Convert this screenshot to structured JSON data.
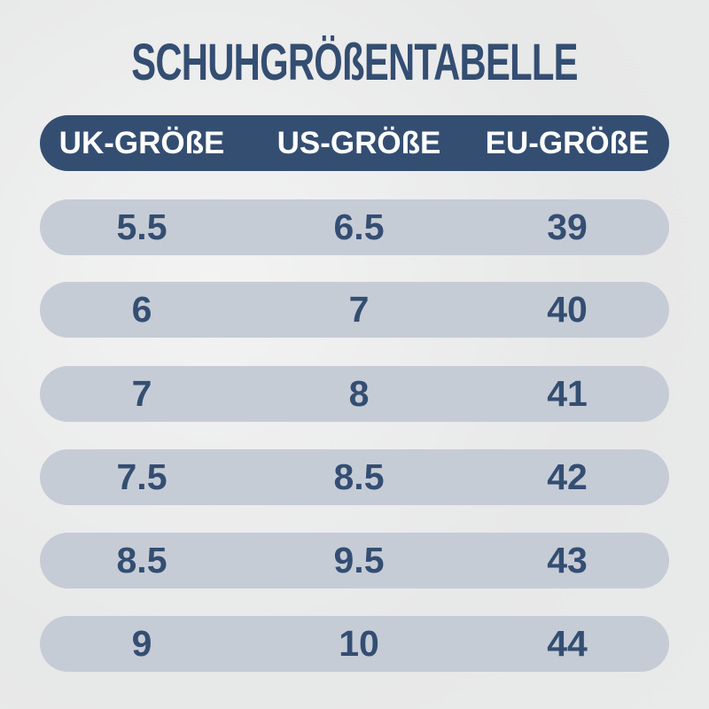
{
  "title": "SCHUHGRÖßENTABELLE",
  "colors": {
    "primary": "#344e72",
    "row_bg": "#c6ccd6",
    "header_text": "#ffffff"
  },
  "columns": [
    "UK-GRÖßE",
    "US-GRÖßE",
    "EU-GRÖßE"
  ],
  "rows": [
    [
      "5.5",
      "6.5",
      "39"
    ],
    [
      "6",
      "7",
      "40"
    ],
    [
      "7",
      "8",
      "41"
    ],
    [
      "7.5",
      "8.5",
      "42"
    ],
    [
      "8.5",
      "9.5",
      "43"
    ],
    [
      "9",
      "10",
      "44"
    ]
  ]
}
